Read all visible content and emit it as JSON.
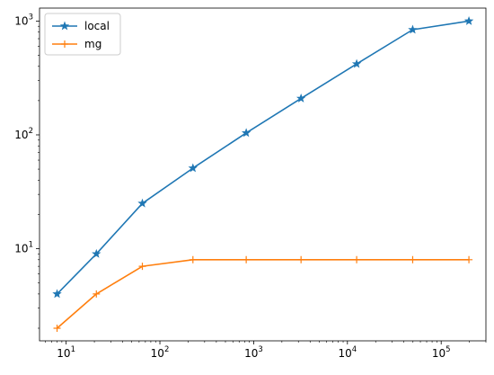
{
  "chart_data": {
    "type": "line",
    "xscale": "log",
    "yscale": "log",
    "xlim": [
      5.2,
      300000
    ],
    "ylim": [
      1.55,
      1300
    ],
    "grid": false,
    "legend_position": "top-left",
    "x_ticks": [
      {
        "value": 10,
        "base": "10",
        "exp": "1"
      },
      {
        "value": 100,
        "base": "10",
        "exp": "2"
      },
      {
        "value": 1000,
        "base": "10",
        "exp": "3"
      },
      {
        "value": 10000,
        "base": "10",
        "exp": "4"
      },
      {
        "value": 100000,
        "base": "10",
        "exp": "5"
      }
    ],
    "y_ticks": [
      {
        "value": 10,
        "base": "10",
        "exp": "1"
      },
      {
        "value": 100,
        "base": "10",
        "exp": "2"
      },
      {
        "value": 1000,
        "base": "10",
        "exp": "3"
      }
    ],
    "series": [
      {
        "name": "local",
        "color": "#1f77b4",
        "marker": "star",
        "x": [
          8,
          21,
          65,
          225,
          833,
          3201,
          12545,
          49665,
          197633
        ],
        "y": [
          4,
          9,
          25,
          51,
          104,
          209,
          420,
          840,
          1000
        ]
      },
      {
        "name": "mg",
        "color": "#ff7f0e",
        "marker": "plus",
        "x": [
          8,
          21,
          65,
          225,
          833,
          3201,
          12545,
          49665,
          197633
        ],
        "y": [
          2,
          4,
          7,
          8,
          8,
          8,
          8,
          8,
          8
        ]
      }
    ]
  }
}
